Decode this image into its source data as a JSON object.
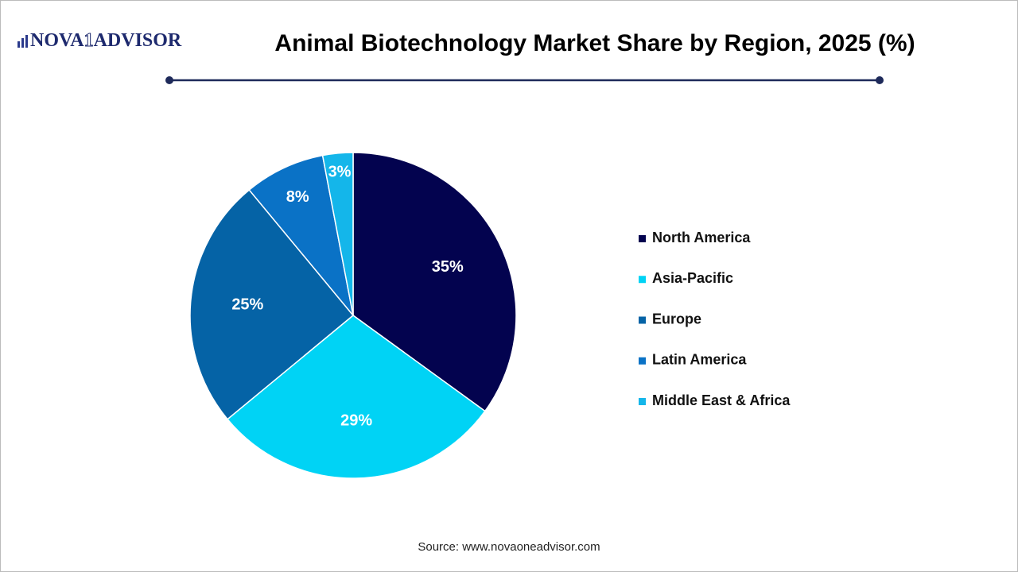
{
  "logo": {
    "name_start": "NOVA",
    "name_mark": "1",
    "name_end": "ADVISOR"
  },
  "chart_data": {
    "type": "pie",
    "title": "Animal Biotechnology Market Share by Region, 2025 (%)",
    "categories": [
      "North America",
      "Asia-Pacific",
      "Europe",
      "Latin America",
      "Middle East & Africa"
    ],
    "values": [
      35,
      29,
      25,
      8,
      3
    ],
    "value_labels": [
      "35%",
      "29%",
      "25%",
      "8%",
      "3%"
    ],
    "colors": [
      "#03034f",
      "#00d3f5",
      "#0563a6",
      "#0a72c6",
      "#14b6ea"
    ],
    "legend": "right"
  },
  "source": "Source: www.novaoneadvisor.com"
}
